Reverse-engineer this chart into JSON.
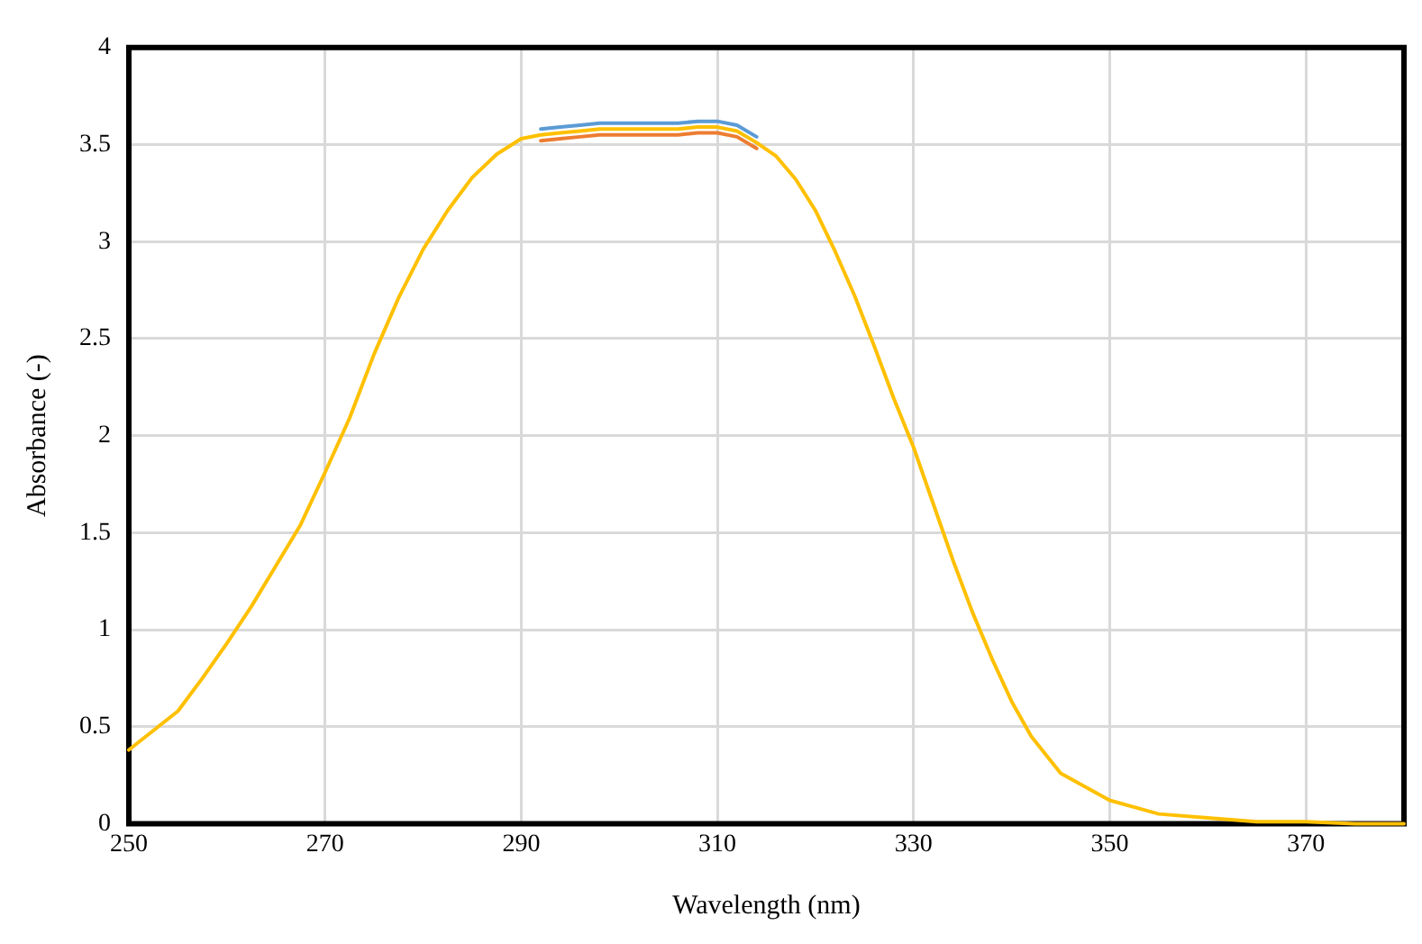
{
  "chart_data": {
    "type": "line",
    "xlabel": "Wavelength (nm)",
    "ylabel": "Absorbance (-)",
    "x": [
      250,
      252.5,
      255,
      257.5,
      260,
      262.5,
      265,
      267.5,
      270,
      272.5,
      275,
      277.5,
      280,
      282.5,
      285,
      287.5,
      290,
      292,
      294,
      296,
      298,
      300,
      302,
      304,
      306,
      308,
      310,
      312,
      314,
      316,
      318,
      320,
      322,
      324,
      326,
      328,
      330,
      332,
      334,
      336,
      338,
      340,
      342,
      345,
      350,
      355,
      360,
      365,
      370,
      375,
      380
    ],
    "xlim": [
      250,
      380
    ],
    "xticks": [
      250,
      270,
      290,
      310,
      330,
      350,
      370
    ],
    "ylim": [
      0,
      4
    ],
    "yticks": [
      0,
      0.5,
      1,
      1.5,
      2,
      2.5,
      3,
      3.5,
      4
    ],
    "grid": true,
    "legend": false,
    "marker": "none",
    "line_style": "solid",
    "series": [
      {
        "color": "#5b9bd5",
        "values": [
          null,
          null,
          null,
          null,
          null,
          null,
          null,
          null,
          null,
          null,
          null,
          null,
          null,
          null,
          null,
          null,
          null,
          3.58,
          3.59,
          3.6,
          3.61,
          3.61,
          3.61,
          3.61,
          3.61,
          3.62,
          3.62,
          3.6,
          3.54,
          null,
          null,
          null,
          null,
          null,
          null,
          null,
          null,
          null,
          null,
          null,
          null,
          null,
          null,
          null,
          null,
          null,
          null,
          null,
          null,
          null,
          null
        ]
      },
      {
        "color": "#ed7d31",
        "values": [
          null,
          null,
          null,
          null,
          null,
          null,
          null,
          null,
          null,
          null,
          null,
          null,
          null,
          null,
          null,
          null,
          null,
          3.52,
          3.53,
          3.54,
          3.55,
          3.55,
          3.55,
          3.55,
          3.55,
          3.56,
          3.56,
          3.54,
          3.48,
          null,
          null,
          null,
          null,
          null,
          null,
          null,
          null,
          null,
          null,
          null,
          null,
          null,
          null,
          null,
          null,
          null,
          null,
          null,
          null,
          null,
          null
        ]
      },
      {
        "color": "#ffc000",
        "values": [
          0.38,
          0.48,
          0.58,
          0.75,
          0.93,
          1.12,
          1.33,
          1.54,
          1.81,
          2.09,
          2.42,
          2.71,
          2.96,
          3.16,
          3.33,
          3.45,
          3.53,
          3.55,
          3.56,
          3.57,
          3.58,
          3.58,
          3.58,
          3.58,
          3.58,
          3.59,
          3.59,
          3.57,
          3.51,
          3.44,
          3.32,
          3.16,
          2.95,
          2.72,
          2.46,
          2.19,
          1.94,
          1.65,
          1.36,
          1.09,
          0.85,
          0.63,
          0.45,
          0.26,
          0.12,
          0.05,
          0.03,
          0.01,
          0.01,
          0,
          0
        ]
      }
    ]
  }
}
